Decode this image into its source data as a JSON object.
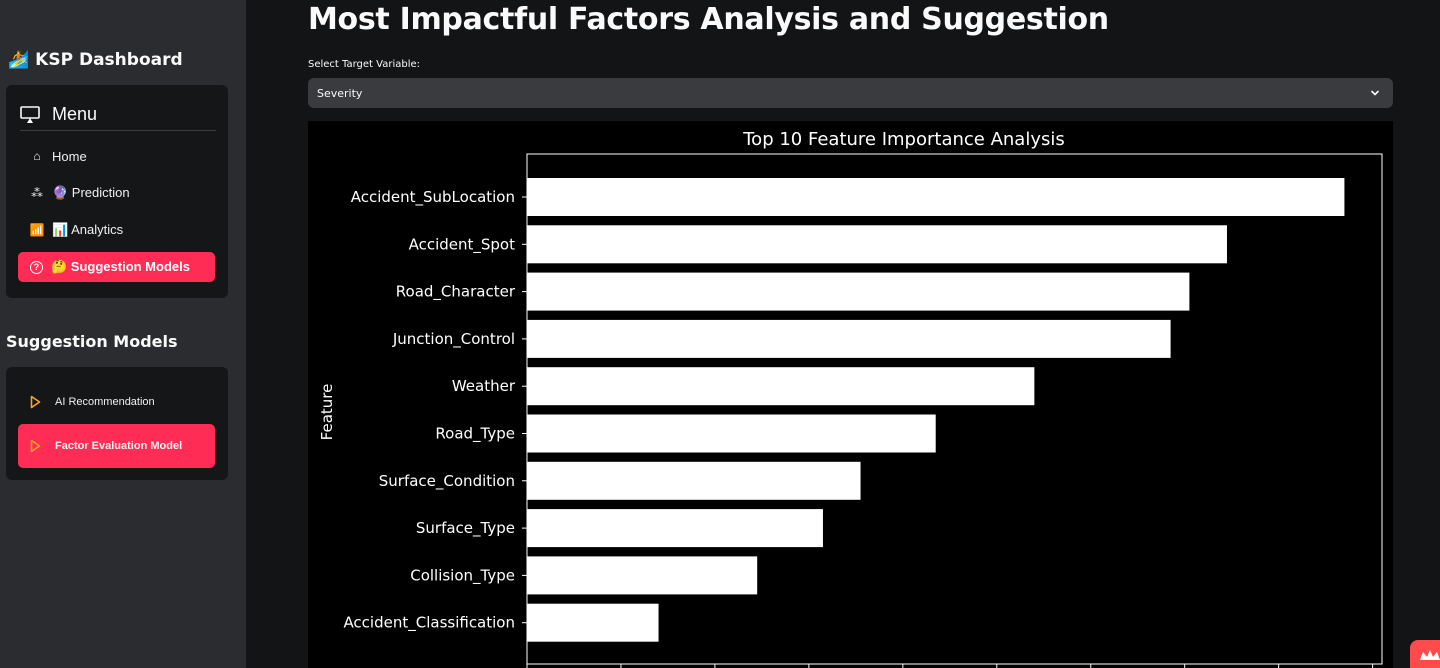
{
  "sidebar": {
    "brand": {
      "icon": "🏄",
      "title": "KSP Dashboard"
    },
    "menu": {
      "title": "Menu",
      "items": [
        {
          "icon": "⌂",
          "label": "Home",
          "active": false
        },
        {
          "icon": "⁂",
          "label": "🔮 Prediction",
          "active": false
        },
        {
          "icon": "📶",
          "label": "📊 Analytics",
          "active": false
        },
        {
          "icon": "?",
          "label": "🤔 Suggestion Models",
          "active": true
        }
      ]
    },
    "section_title": "Suggestion Models",
    "suggestion_items": [
      {
        "label": "AI Recommendation",
        "active": false
      },
      {
        "label": "Factor Evaluation Model",
        "active": true
      }
    ]
  },
  "main": {
    "title": "Most Impactful Factors Analysis and Suggestion",
    "select": {
      "label": "Select Target Variable:",
      "value": "Severity"
    }
  },
  "chart_data": {
    "type": "bar",
    "orientation": "horizontal",
    "title": "Top 10 Feature Importance Analysis",
    "xlabel": "",
    "ylabel": "Feature",
    "categories": [
      "Accident_SubLocation",
      "Accident_Spot",
      "Road_Character",
      "Junction_Control",
      "Weather",
      "Road_Type",
      "Surface_Condition",
      "Surface_Type",
      "Collision_Type",
      "Accident_Classification"
    ],
    "values": [
      0.174,
      0.149,
      0.141,
      0.137,
      0.108,
      0.087,
      0.071,
      0.063,
      0.049,
      0.028
    ],
    "xlim": [
      0,
      0.182
    ],
    "xticks": [
      0,
      0.02,
      0.04,
      0.06,
      0.08,
      0.1,
      0.12,
      0.14,
      0.16,
      0.18
    ],
    "colors": {
      "background": "#000000",
      "bar": "#ffffff",
      "text": "#ffffff"
    }
  }
}
